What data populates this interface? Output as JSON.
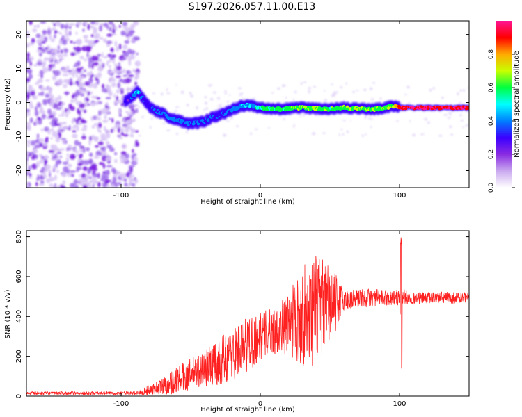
{
  "figure": {
    "title": "S197.2026.057.11.00.E13"
  },
  "chart_data": [
    {
      "type": "heatmap",
      "title": "S197.2026.057.11.00.E13",
      "xlabel": "Height of straight line (km)",
      "ylabel": "Frequency (Hz)",
      "xlim": [
        -168,
        150
      ],
      "ylim": [
        -25,
        24
      ],
      "xticks": [
        -100,
        0,
        100
      ],
      "yticks": [
        -20,
        -10,
        0,
        10,
        20
      ],
      "colorbar": {
        "label": "Normalized spectral amplitude",
        "range": [
          0,
          1
        ],
        "ticks": [
          "0.0",
          "0.2",
          "0.4",
          "0.6",
          "0.8"
        ],
        "colors": [
          "#ffffff",
          "#c9a9ef",
          "#8a2be2",
          "#3a00ff",
          "#0080ff",
          "#00ffff",
          "#00ff40",
          "#c8ff00",
          "#ffaa00",
          "#ff0000",
          "#ff1493"
        ]
      },
      "ridge": {
        "description": "dominant frequency track",
        "x": [
          -97,
          -93,
          -88,
          -84,
          -80,
          -75,
          -70,
          -65,
          -60,
          -55,
          -50,
          -45,
          -40,
          -35,
          -30,
          -25,
          -20,
          -15,
          -10,
          -5,
          0,
          10,
          20,
          30,
          40,
          50,
          60,
          70,
          80,
          90,
          96,
          100,
          120,
          150
        ],
        "y": [
          0.5,
          1.5,
          3.2,
          1.0,
          -1.0,
          -2.5,
          -3.2,
          -4.5,
          -5.0,
          -5.8,
          -6.2,
          -6.0,
          -5.5,
          -4.5,
          -3.8,
          -3.0,
          -2.0,
          -1.2,
          -0.8,
          -1.0,
          -1.5,
          -2.0,
          -1.8,
          -1.5,
          -1.8,
          -2.0,
          -1.5,
          -1.8,
          -2.0,
          -1.5,
          -1.0,
          -1.5,
          -1.5,
          -1.5
        ],
        "amplitude": [
          0.25,
          0.3,
          0.45,
          0.35,
          0.3,
          0.35,
          0.35,
          0.4,
          0.38,
          0.35,
          0.35,
          0.4,
          0.35,
          0.35,
          0.3,
          0.35,
          0.4,
          0.4,
          0.45,
          0.45,
          0.55,
          0.6,
          0.6,
          0.62,
          0.65,
          0.6,
          0.62,
          0.65,
          0.65,
          0.65,
          0.65,
          0.95,
          0.95,
          0.95
        ]
      }
    },
    {
      "type": "line",
      "xlabel": "Height of straight line (km)",
      "ylabel": "SNR (10 * v/v)",
      "xlim": [
        -168,
        150
      ],
      "ylim": [
        0,
        830
      ],
      "xticks": [
        -100,
        0,
        100
      ],
      "yticks": [
        0,
        200,
        400,
        600,
        800
      ],
      "color": "#ff2020",
      "envelope": {
        "x": [
          -168,
          -90,
          -80,
          -70,
          -60,
          -50,
          -40,
          -30,
          -20,
          -10,
          0,
          10,
          20,
          30,
          40,
          50,
          60,
          70,
          80,
          90,
          100,
          101,
          102,
          110,
          130,
          150
        ],
        "center": [
          15,
          15,
          30,
          50,
          80,
          110,
          140,
          170,
          210,
          260,
          300,
          330,
          360,
          400,
          430,
          460,
          480,
          490,
          495,
          495,
          495,
          380,
          500,
          490,
          495,
          490
        ],
        "spread": [
          8,
          8,
          25,
          45,
          70,
          80,
          90,
          120,
          130,
          150,
          120,
          120,
          150,
          250,
          280,
          200,
          60,
          50,
          45,
          40,
          40,
          120,
          40,
          30,
          30,
          30
        ]
      }
    }
  ]
}
